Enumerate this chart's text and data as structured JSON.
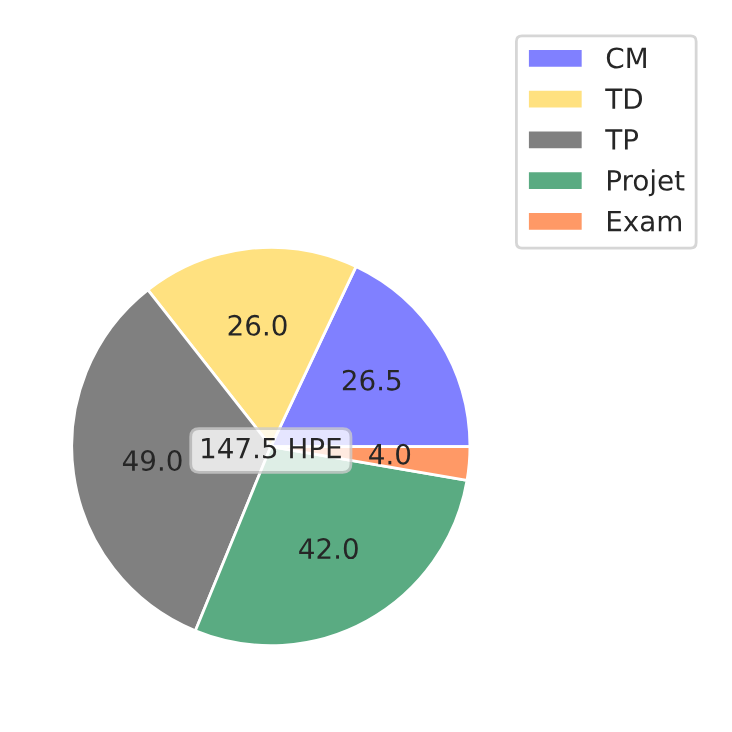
{
  "chart_data": {
    "type": "pie",
    "categories": [
      "CM",
      "TD",
      "TP",
      "Projet",
      "Exam"
    ],
    "values": [
      26.5,
      26,
      49,
      42,
      4
    ],
    "value_labels": [
      "26.5",
      "26.0",
      "49.0",
      "42.0",
      "4.0"
    ],
    "colors": [
      "#8080ff",
      "#ffe180",
      "#808080",
      "#5aab82",
      "#ff9966"
    ],
    "annotations": [
      "147.5 HPE"
    ],
    "legend": "top right"
  }
}
